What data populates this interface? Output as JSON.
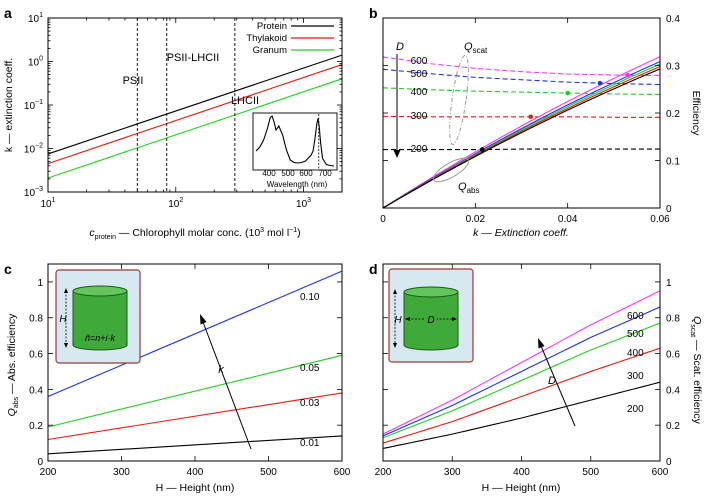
{
  "panels": {
    "a": {
      "label": "a",
      "xlabel_pre": "c",
      "xlabel_sub": "protein",
      "xlabel_post": " — Chlorophyll molar conc. (10",
      "xlabel_sup": "3",
      "xlabel_unit": " mol l",
      "xlabel_sup2": "−1",
      "xlabel_end": ")",
      "ylabel": "k — extinction coeff.",
      "xlim": [
        10,
        2000
      ],
      "ylim": [
        0.001,
        10
      ],
      "xscale": "log",
      "yscale": "log",
      "xtick_labels": [
        {
          "v": 10,
          "m": "10",
          "e": "1"
        },
        {
          "v": 100,
          "m": "10",
          "e": "2"
        },
        {
          "v": 1000,
          "m": "10",
          "e": "3"
        }
      ],
      "ytick_labels": [
        {
          "v": 10,
          "m": "10",
          "e": "1"
        },
        {
          "v": 1,
          "m": "10",
          "e": "0"
        },
        {
          "v": 0.1,
          "m": "10",
          "e": "−1"
        },
        {
          "v": 0.01,
          "m": "10",
          "e": "−2"
        },
        {
          "v": 0.001,
          "m": "10",
          "e": "−3"
        }
      ],
      "series": [
        {
          "name": "Protein",
          "color": "#000000",
          "x": [
            10,
            2000
          ],
          "y": [
            0.0075,
            1.4
          ]
        },
        {
          "name": "Thylakoid",
          "color": "#e8190f",
          "x": [
            10,
            2000
          ],
          "y": [
            0.0045,
            0.85
          ]
        },
        {
          "name": "Granum",
          "color": "#22d41a",
          "x": [
            10,
            2000
          ],
          "y": [
            0.0021,
            0.4
          ]
        }
      ],
      "vlines": [
        {
          "x": 50,
          "label": "PSII"
        },
        {
          "x": 85,
          "label": "PSII-LHCII"
        },
        {
          "x": 290,
          "label": "LHCII"
        }
      ],
      "inset": {
        "xlabel": "Wavelength (nm)",
        "xticks": [
          "400",
          "500",
          "600",
          "700"
        ],
        "xlim": [
          350,
          760
        ],
        "x": [
          350,
          370,
          390,
          410,
          425,
          435,
          445,
          455,
          470,
          490,
          510,
          530,
          550,
          570,
          590,
          610,
          625,
          640,
          650,
          660,
          670,
          676,
          682,
          690,
          700,
          720,
          740,
          760
        ],
        "y": [
          0.3,
          0.38,
          0.52,
          0.75,
          0.97,
          1.0,
          0.88,
          0.72,
          0.8,
          0.62,
          0.32,
          0.12,
          0.07,
          0.06,
          0.07,
          0.1,
          0.16,
          0.22,
          0.3,
          0.55,
          0.85,
          0.95,
          0.8,
          0.45,
          0.15,
          0.03,
          0.01,
          0.0
        ],
        "vline_x": 680
      }
    },
    "b": {
      "label": "b",
      "xlabel": "k — Extinction coeff.",
      "ylabel_right": "Efficiency",
      "xlim": [
        0,
        0.06
      ],
      "ylim": [
        0,
        0.4
      ],
      "xtick_labels": [
        "0",
        "0.02",
        "0.04",
        "0.06"
      ],
      "xtick_values": [
        0,
        0.02,
        0.04,
        0.06
      ],
      "ytick_labels": [
        "0",
        "0.1",
        "0.2",
        "0.3",
        "0.4"
      ],
      "ytick_values": [
        0,
        0.1,
        0.2,
        0.3,
        0.4
      ],
      "D_label": "D",
      "qscat_label_pre": "Q",
      "qscat_label_sub": "scat",
      "qabs_label_pre": "Q",
      "qabs_label_sub": "abs",
      "diameter_labels": [
        "600",
        "500",
        "400",
        "300",
        "200"
      ],
      "series": [
        {
          "name": "600",
          "color": "#ff33ff",
          "abs_slope": 6.2,
          "scat": [
            0.318,
            0.304,
            0.294,
            0.287,
            0.282,
            0.28,
            0.279
          ],
          "mark_x": 0.053
        },
        {
          "name": "500",
          "color": "#1a33e6",
          "abs_slope": 6.0,
          "scat": [
            0.292,
            0.283,
            0.275,
            0.27,
            0.265,
            0.262,
            0.26
          ],
          "mark_x": 0.047
        },
        {
          "name": "400",
          "color": "#22cc22",
          "abs_slope": 5.9,
          "scat": [
            0.253,
            0.249,
            0.246,
            0.244,
            0.242,
            0.24,
            0.239
          ],
          "mark_x": 0.04
        },
        {
          "name": "300",
          "color": "#e8190f",
          "abs_slope": 5.8,
          "scat": [
            0.193,
            0.192,
            0.192,
            0.192,
            0.192,
            0.191,
            0.191
          ],
          "mark_x": 0.032
        },
        {
          "name": "200",
          "color": "#000000",
          "abs_slope": 5.7,
          "scat": [
            0.123,
            0.123,
            0.123,
            0.124,
            0.124,
            0.124,
            0.124
          ],
          "mark_x": 0.0215
        }
      ]
    },
    "c": {
      "label": "c",
      "xlabel": "H — Height (nm)",
      "ylabel_pre": "Q",
      "ylabel_sub": "abs",
      "ylabel_post": " — Abs. efficiency",
      "xlim": [
        200,
        600
      ],
      "ylim": [
        0,
        1.1
      ],
      "xtick_labels": [
        "200",
        "300",
        "400",
        "500",
        "600"
      ],
      "xtick_values": [
        200,
        300,
        400,
        500,
        600
      ],
      "ytick_labels": [
        "0",
        "0.2",
        "0.4",
        "0.6",
        "0.8",
        "1"
      ],
      "ytick_values": [
        0,
        0.2,
        0.4,
        0.6,
        0.8,
        1.0
      ],
      "arrow_label": "k",
      "inset_H": "H",
      "inset_formula": "ñ=n+i·k",
      "series": [
        {
          "name": "0.10",
          "color": "#1a33e6",
          "x": [
            200,
            600
          ],
          "y": [
            0.36,
            1.06
          ]
        },
        {
          "name": "0.05",
          "color": "#22cc22",
          "x": [
            200,
            600
          ],
          "y": [
            0.19,
            0.59
          ]
        },
        {
          "name": "0.03",
          "color": "#e8190f",
          "x": [
            200,
            600
          ],
          "y": [
            0.12,
            0.38
          ]
        },
        {
          "name": "0.01",
          "color": "#000000",
          "x": [
            200,
            600
          ],
          "y": [
            0.04,
            0.14
          ]
        }
      ]
    },
    "d": {
      "label": "d",
      "xlabel": "H — Height (nm)",
      "ylabel_pre": "Q",
      "ylabel_sub": "scat",
      "ylabel_post": " — Scat. efficiency",
      "xlim": [
        200,
        600
      ],
      "ylim": [
        0,
        1.1
      ],
      "xtick_labels": [
        "200",
        "300",
        "400",
        "500",
        "600"
      ],
      "xtick_values": [
        200,
        300,
        400,
        500,
        600
      ],
      "ytick_labels": [
        "0",
        "0.2",
        "0.4",
        "0.6",
        "0.8",
        "1"
      ],
      "ytick_values": [
        0,
        0.2,
        0.4,
        0.6,
        0.8,
        1.0
      ],
      "arrow_label": "D",
      "inset_H": "H",
      "inset_D": "D",
      "series": [
        {
          "name": "600",
          "color": "#ff33ff",
          "x": [
            200,
            300,
            400,
            500,
            600
          ],
          "y": [
            0.15,
            0.34,
            0.55,
            0.76,
            0.95
          ]
        },
        {
          "name": "500",
          "color": "#1a33e6",
          "x": [
            200,
            300,
            400,
            500,
            600
          ],
          "y": [
            0.14,
            0.31,
            0.5,
            0.69,
            0.86
          ]
        },
        {
          "name": "400",
          "color": "#22cc22",
          "x": [
            200,
            300,
            400,
            500,
            600
          ],
          "y": [
            0.13,
            0.28,
            0.45,
            0.62,
            0.77
          ]
        },
        {
          "name": "300",
          "color": "#e8190f",
          "x": [
            200,
            300,
            400,
            500,
            600
          ],
          "y": [
            0.1,
            0.22,
            0.36,
            0.5,
            0.63
          ]
        },
        {
          "name": "200",
          "color": "#000000",
          "x": [
            200,
            300,
            400,
            500,
            600
          ],
          "y": [
            0.07,
            0.15,
            0.24,
            0.34,
            0.44
          ]
        }
      ]
    }
  }
}
